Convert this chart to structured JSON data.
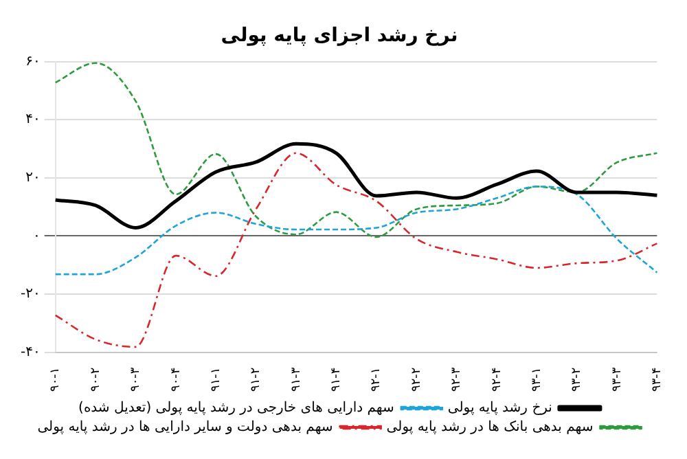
{
  "chart_data": {
    "type": "line",
    "title": "نرخ رشد اجزای پایه پولی",
    "categories": [
      "۹۰-۱",
      "۹۰-۲",
      "۹۰-۳",
      "۹۰-۴",
      "۹۱-۱",
      "۹۱-۲",
      "۹۱-۳",
      "۹۱-۴",
      "۹۲-۱",
      "۹۲-۲",
      "۹۲-۳",
      "۹۲-۴",
      "۹۳-۱",
      "۹۳-۲",
      "۹۳-۳",
      "۹۳-۴"
    ],
    "series": [
      {
        "name": "نرخ رشد پایه پولی",
        "color": "#000000",
        "line_style": "solid",
        "values": [
          12.4,
          10.5,
          2.8,
          12,
          22,
          25.4,
          31.7,
          28.5,
          13.8,
          15,
          13,
          17.7,
          22.3,
          15,
          15,
          14
        ]
      },
      {
        "name": "سهم دارایی های خارجی در رشد پایه پولی (تعدیل شده)",
        "color": "#1ea5d8",
        "line_style": "dashed",
        "values": [
          -13.2,
          -13.2,
          -7.4,
          3.5,
          8,
          4.1,
          2.2,
          2.2,
          2.8,
          8,
          9.2,
          13,
          17,
          14.3,
          -1,
          -12.6
        ]
      },
      {
        "name": "سهم بدهی بانک ها در رشد پایه پولی",
        "color": "#2e9b3e",
        "line_style": "dashed",
        "values": [
          52.8,
          59.5,
          46.4,
          14.3,
          28.2,
          6.7,
          0.5,
          8.2,
          -0.4,
          9.2,
          10.5,
          11.2,
          17,
          15,
          25.3,
          28.5
        ]
      },
      {
        "name": "سهم بدهی دولت و سایر دارایی ها در رشد پایه پولی",
        "color": "#d9262c",
        "line_style": "dotted",
        "values": [
          -27.3,
          -35.6,
          -38.2,
          -6.8,
          -13.8,
          9.2,
          28.5,
          17.6,
          12,
          -1,
          -5.5,
          -8,
          -11,
          -9.4,
          -8.5,
          -2.6
        ]
      }
    ],
    "ylim": [
      -40,
      60
    ],
    "yticks": [
      {
        "value": -40,
        "label": "-۴۰"
      },
      {
        "value": -20,
        "label": "-۲۰"
      },
      {
        "value": 0,
        "label": "۰"
      },
      {
        "value": 20,
        "label": "۲۰"
      },
      {
        "value": 40,
        "label": "۴۰"
      },
      {
        "value": 60,
        "label": "۶۰"
      }
    ],
    "grid": "y",
    "legend": "bottom",
    "marker": "none"
  }
}
